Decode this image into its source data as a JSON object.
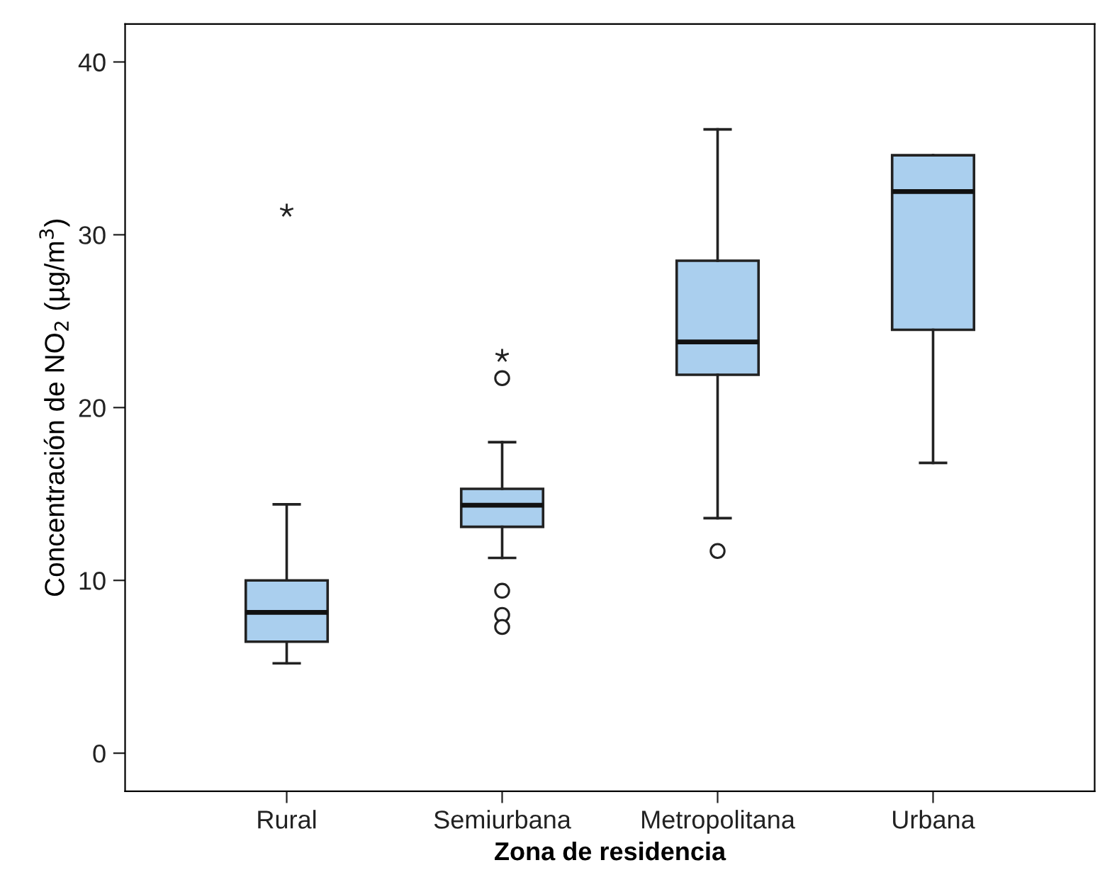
{
  "chart_data": {
    "type": "box",
    "xlabel": "Zona de residencia",
    "ylabel": "Concentración de NO$_{2}$ (µg/m$^{3}$)",
    "categories": [
      "Rural",
      "Semiurbana",
      "Metropolitana",
      "Urbana"
    ],
    "boxes": [
      {
        "low": 5.2,
        "q1": 6.45,
        "median": 8.15,
        "q3": 10.0,
        "high": 14.4,
        "outliers": [
          31.4
        ]
      },
      {
        "low": 11.3,
        "q1": 13.1,
        "median": 14.35,
        "q3": 15.3,
        "high": 18.0,
        "outliers": [
          23.0,
          21.7,
          9.4,
          8.0,
          7.3
        ]
      },
      {
        "low": 13.6,
        "q1": 21.9,
        "median": 23.8,
        "q3": 28.5,
        "high": 36.1,
        "outliers": [
          11.7
        ]
      },
      {
        "low": 16.8,
        "q1": 24.5,
        "median": 32.5,
        "q3": 34.6,
        "high": 34.6
      }
    ],
    "color": "#aacfee",
    "ylim": [
      -2.2,
      42.2
    ],
    "yticks": [
      0,
      10,
      20,
      30,
      40
    ],
    "grid": false
  }
}
